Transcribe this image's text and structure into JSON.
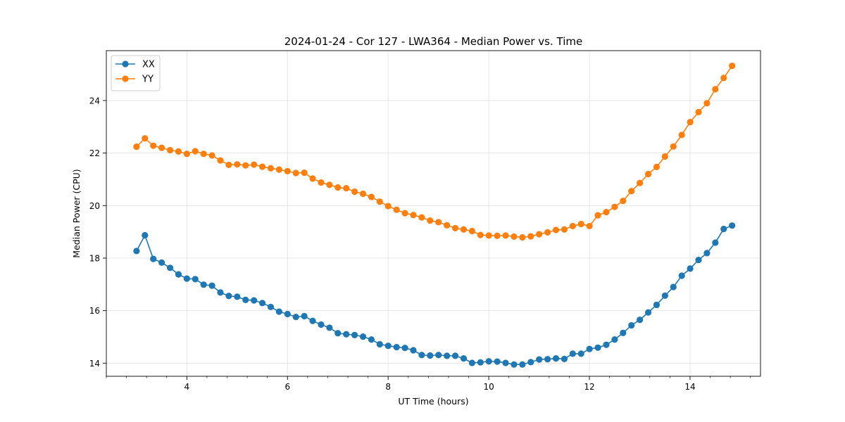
{
  "chart_data": {
    "type": "line",
    "title": "2024-01-24 - Cor 127 - LWA364 - Median Power vs. Time",
    "xlabel": "UT Time (hours)",
    "ylabel": "Median Power (CPU)",
    "xlim": [
      2.4,
      15.4
    ],
    "ylim": [
      13.5,
      25.9
    ],
    "xticks": [
      4,
      6,
      8,
      10,
      12,
      14
    ],
    "yticks": [
      14,
      16,
      18,
      20,
      22,
      24
    ],
    "xminor_step": 0.4,
    "grid": true,
    "legend_loc": "upper-left",
    "x_start": 3.0,
    "x_step": 0.1667,
    "series": [
      {
        "name": "XX",
        "color": "#1f77b4",
        "values": [
          18.27,
          18.87,
          17.97,
          17.83,
          17.63,
          17.38,
          17.22,
          17.2,
          16.99,
          16.95,
          16.69,
          16.56,
          16.53,
          16.41,
          16.39,
          16.29,
          16.14,
          15.96,
          15.87,
          15.76,
          15.79,
          15.61,
          15.47,
          15.35,
          15.14,
          15.1,
          15.07,
          15.01,
          14.9,
          14.72,
          14.66,
          14.61,
          14.58,
          14.49,
          14.31,
          14.29,
          14.31,
          14.28,
          14.28,
          14.18,
          14.01,
          14.03,
          14.07,
          14.06,
          14.01,
          13.95,
          13.95,
          14.04,
          14.14,
          14.15,
          14.18,
          14.16,
          14.36,
          14.36,
          14.54,
          14.59,
          14.7,
          14.9,
          15.15,
          15.44,
          15.65,
          15.93,
          16.22,
          16.57,
          16.9,
          17.33,
          17.6,
          17.93,
          18.19,
          18.59,
          19.11,
          19.24
        ]
      },
      {
        "name": "YY",
        "color": "#ff7f0e",
        "values": [
          22.24,
          22.56,
          22.28,
          22.2,
          22.11,
          22.06,
          21.97,
          22.07,
          21.97,
          21.91,
          21.72,
          21.55,
          21.57,
          21.53,
          21.56,
          21.48,
          21.42,
          21.37,
          21.31,
          21.24,
          21.25,
          21.03,
          20.88,
          20.79,
          20.69,
          20.66,
          20.53,
          20.45,
          20.33,
          20.15,
          19.98,
          19.84,
          19.71,
          19.64,
          19.55,
          19.43,
          19.37,
          19.25,
          19.14,
          19.09,
          19.03,
          18.88,
          18.86,
          18.85,
          18.86,
          18.82,
          18.79,
          18.83,
          18.91,
          18.98,
          19.07,
          19.09,
          19.22,
          19.3,
          19.22,
          19.63,
          19.75,
          19.95,
          20.18,
          20.55,
          20.86,
          21.2,
          21.47,
          21.87,
          22.25,
          22.69,
          23.18,
          23.56,
          23.9,
          24.43,
          24.86,
          25.32
        ]
      }
    ]
  }
}
